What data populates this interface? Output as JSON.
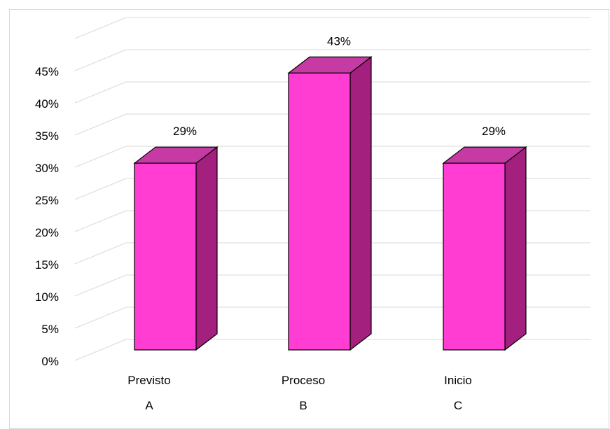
{
  "chart_data": {
    "type": "bar",
    "style": "3d-column",
    "categories": [
      "Previsto",
      "Proceso",
      "Inicio"
    ],
    "category_letters": [
      "A",
      "B",
      "C"
    ],
    "values": [
      0.29,
      0.43,
      0.29
    ],
    "data_labels": [
      "29%",
      "43%",
      "29%"
    ],
    "title": "",
    "xlabel": "",
    "ylabel": "",
    "ylim": [
      0,
      0.45
    ],
    "yticks": [
      0,
      0.05,
      0.1,
      0.15,
      0.2,
      0.25,
      0.3,
      0.35,
      0.4,
      0.45
    ],
    "ytick_labels": [
      "0%",
      "5%",
      "10%",
      "15%",
      "20%",
      "25%",
      "30%",
      "35%",
      "40%",
      "45%"
    ],
    "grid": true,
    "legend": "none",
    "colors": {
      "bar_front": "#ff3dd2",
      "bar_top": "#c63aa4",
      "bar_side": "#a4207e",
      "gridline": "#d9d9d9",
      "outline": "#000000"
    }
  }
}
